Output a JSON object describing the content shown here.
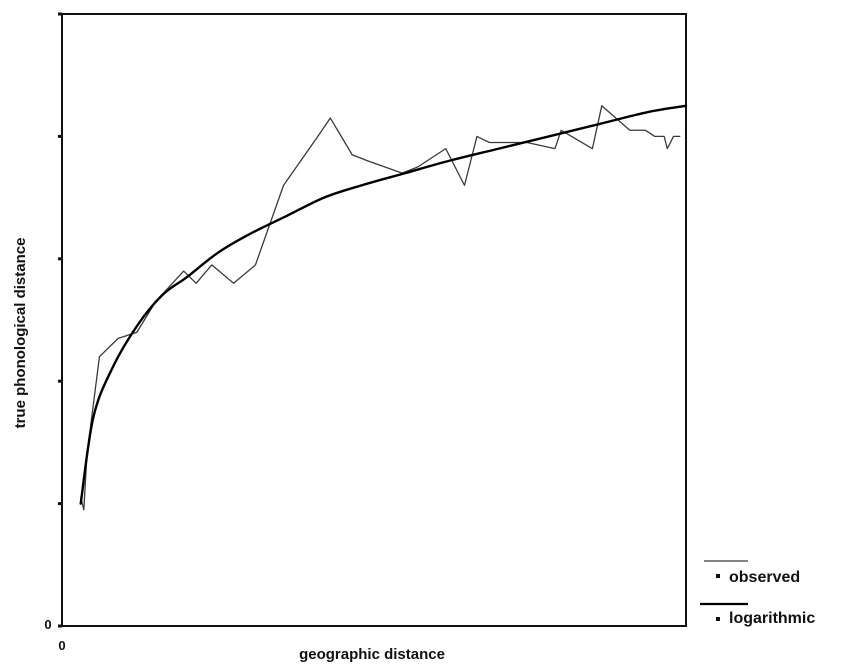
{
  "chart_data": {
    "type": "line",
    "title": "",
    "xlabel": "geographic distance",
    "ylabel": "true phonological distance",
    "xlim": [
      0,
      100
    ],
    "ylim": [
      0,
      100
    ],
    "tick_labels": {
      "x_origin": "0",
      "y_origin": "0"
    },
    "grid": false,
    "legend_position": "bottom-right, outside plot",
    "series": [
      {
        "name": "observed",
        "color": "#3a3a3a",
        "style": "thin",
        "x": [
          3,
          3.5,
          4,
          6,
          9,
          12,
          15,
          19.5,
          21.5,
          24,
          27.5,
          31,
          35.5,
          41,
          43,
          46.5,
          49,
          54.5,
          57,
          61.5,
          64.5,
          66.5,
          68.5,
          71.5,
          74.5,
          79,
          80,
          85,
          86.5,
          91,
          93.5,
          95,
          96.5,
          97,
          98,
          99
        ],
        "y": [
          21,
          19,
          28,
          44,
          47,
          48,
          53,
          58,
          56,
          59,
          56,
          59,
          72,
          80,
          83,
          77,
          76,
          74,
          75,
          78,
          72,
          80,
          79,
          79,
          79,
          78,
          81,
          78,
          85,
          81,
          81,
          80,
          80,
          78,
          80,
          80
        ]
      },
      {
        "name": "logarithmic",
        "color": "#000000",
        "style": "thick",
        "type": "logarithmic fit",
        "x": [
          3,
          5,
          8,
          12,
          16,
          20,
          25,
          30,
          36,
          42,
          48,
          55,
          62,
          70,
          78,
          86,
          94,
          100
        ],
        "y": [
          20,
          34,
          42,
          49,
          54,
          57,
          61,
          64,
          67,
          70,
          72,
          74,
          76,
          78,
          80,
          82,
          84,
          85
        ]
      }
    ]
  }
}
